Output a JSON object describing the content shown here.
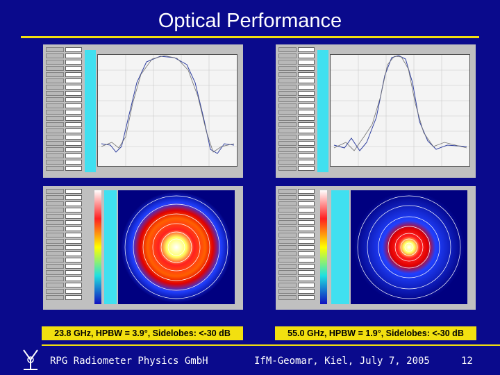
{
  "title": "Optical Performance",
  "captions": {
    "left": "23.8 GHz, HPBW = 3.9°, Sidelobes: <-30 dB",
    "right": "55.0 GHz, HPBW = 1.9°, Sidelobes: <-30 dB"
  },
  "footer": {
    "company": "RPG Radiometer Physics GmbH",
    "event": "IfM-Geomar, Kiel, July 7, 2005",
    "page": "12"
  },
  "colors": {
    "background": "#0a0a8c",
    "accent_yellow": "#f2e010",
    "panel_gray": "#c0c0c0",
    "cyan": "#40e0f0"
  },
  "panels": [
    {
      "id": "beam-cut-23",
      "kind": "beam-cut-plot"
    },
    {
      "id": "beam-cut-55",
      "kind": "beam-cut-plot"
    },
    {
      "id": "beam-map-23",
      "kind": "beam-contour-map"
    },
    {
      "id": "beam-map-55",
      "kind": "beam-contour-map"
    }
  ]
}
